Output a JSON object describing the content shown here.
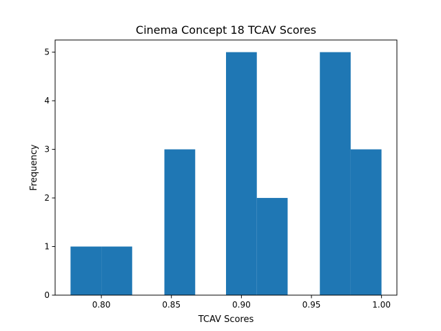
{
  "chart_data": {
    "type": "bar",
    "subtype": "histogram",
    "title": "Cinema Concept 18 TCAV Scores",
    "xlabel": "TCAV Scores",
    "ylabel": "Frequency",
    "xlim": [
      0.767,
      1.011
    ],
    "ylim": [
      0,
      5.25
    ],
    "grid": false,
    "legend": "none",
    "bar_color": "#1f77b4",
    "bins": [
      {
        "x0": 0.778,
        "x1": 0.8,
        "count": 1
      },
      {
        "x0": 0.8,
        "x1": 0.822,
        "count": 1
      },
      {
        "x0": 0.822,
        "x1": 0.845,
        "count": 0
      },
      {
        "x0": 0.845,
        "x1": 0.867,
        "count": 3
      },
      {
        "x0": 0.867,
        "x1": 0.889,
        "count": 0
      },
      {
        "x0": 0.889,
        "x1": 0.911,
        "count": 5
      },
      {
        "x0": 0.911,
        "x1": 0.933,
        "count": 2
      },
      {
        "x0": 0.933,
        "x1": 0.956,
        "count": 0
      },
      {
        "x0": 0.956,
        "x1": 0.978,
        "count": 5
      },
      {
        "x0": 0.978,
        "x1": 1.0,
        "count": 3
      }
    ],
    "xticks": [
      0.8,
      0.85,
      0.9,
      0.95,
      1.0
    ],
    "xtick_labels": [
      "0.80",
      "0.85",
      "0.90",
      "0.95",
      "1.00"
    ],
    "yticks": [
      0,
      1,
      2,
      3,
      4,
      5
    ],
    "ytick_labels": [
      "0",
      "1",
      "2",
      "3",
      "4",
      "5"
    ]
  }
}
